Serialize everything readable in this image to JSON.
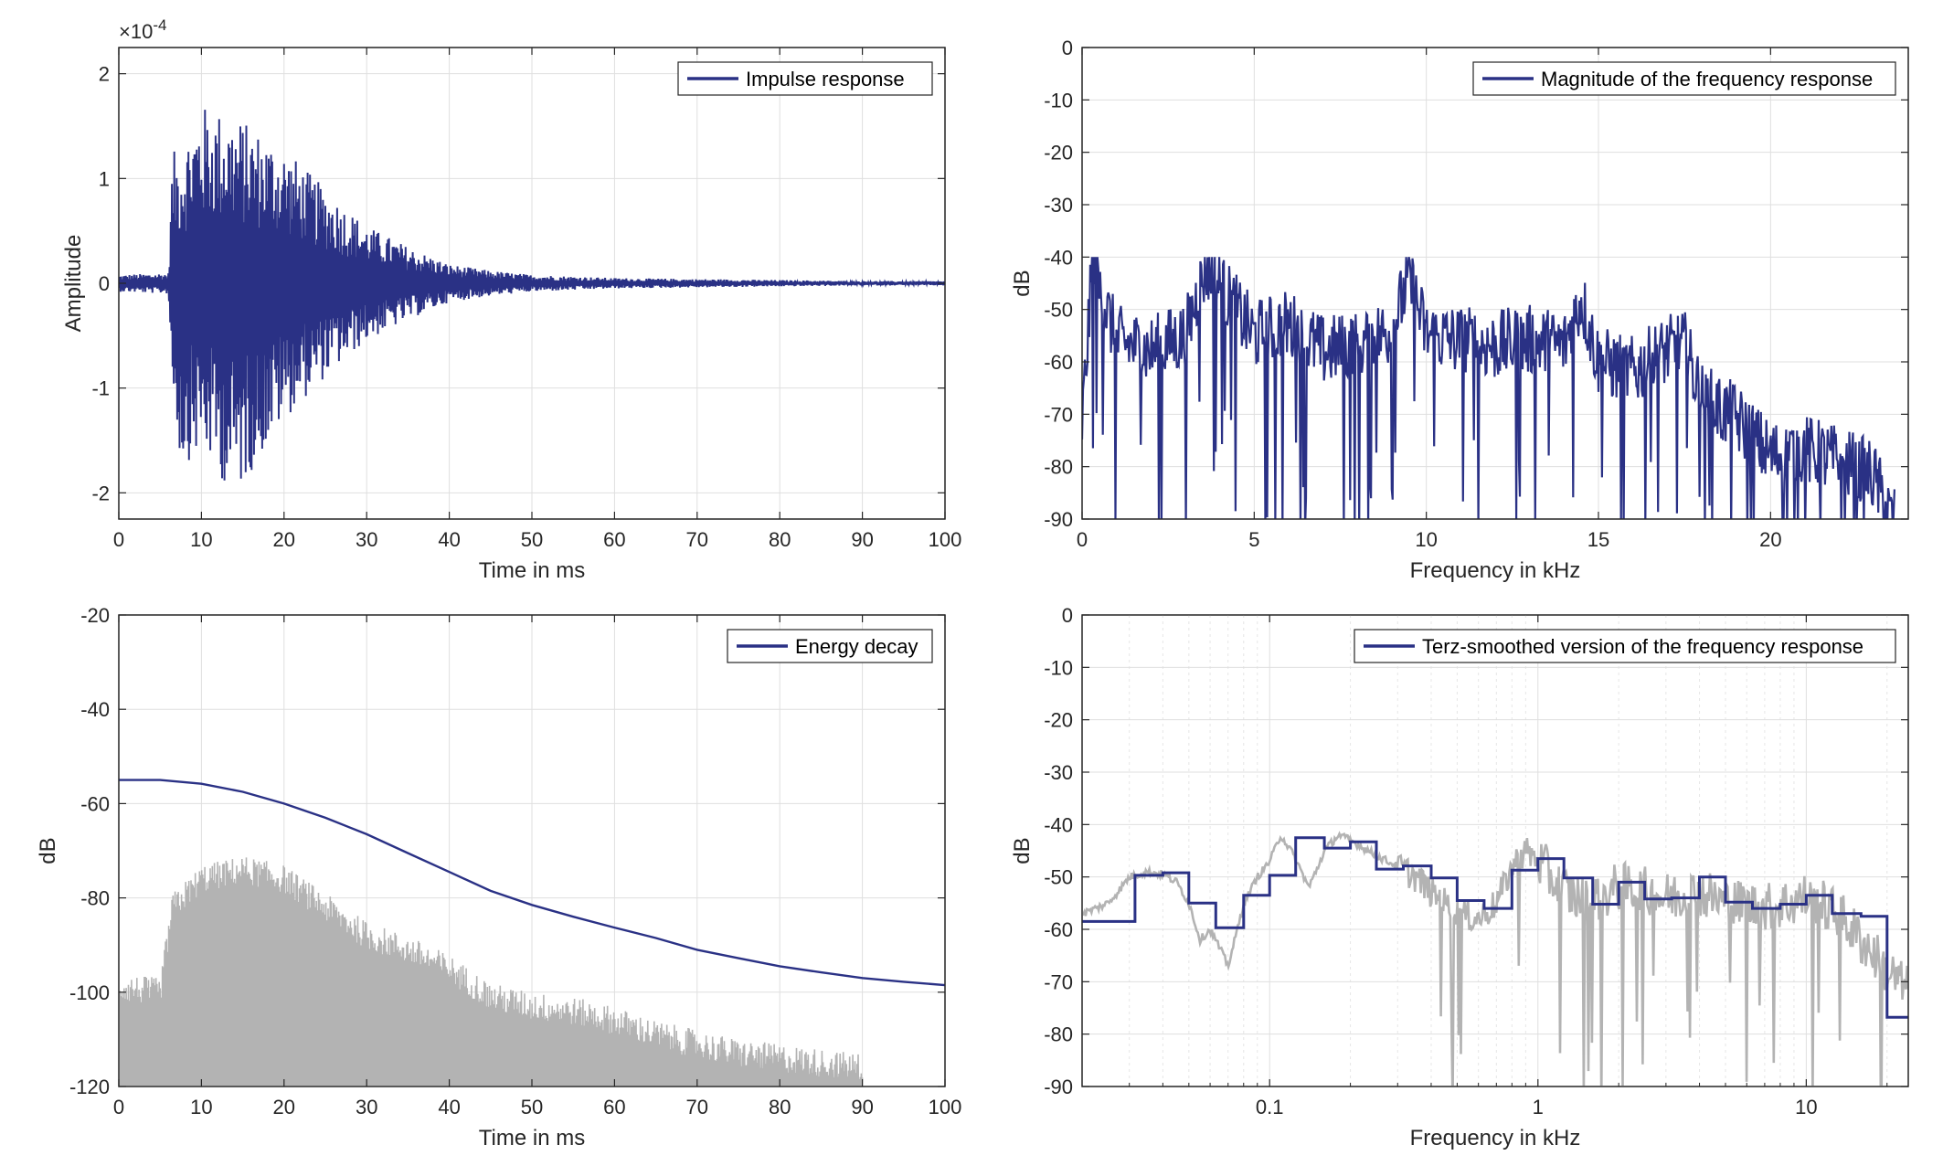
{
  "colors": {
    "main": "#2a3185",
    "gray": "#b3b3b3",
    "axis": "#262626",
    "grid": "#dfdfdf"
  },
  "chart_data": [
    {
      "id": "impulse",
      "type": "line",
      "title": "",
      "xlabel": "Time in ms",
      "ylabel": "Amplitude",
      "exponent_label": "×10",
      "exponent_power": "-4",
      "xlim": [
        0,
        100
      ],
      "ylim": [
        -2.25,
        2.25
      ],
      "xticks": [
        0,
        10,
        20,
        30,
        40,
        50,
        60,
        70,
        80,
        90,
        100
      ],
      "yticks": [
        -2,
        -1,
        0,
        1,
        2
      ],
      "grid": true,
      "legend": {
        "position": "top-right",
        "entries": [
          "Impulse response"
        ]
      },
      "series": [
        {
          "name": "Impulse response",
          "color": "#2a3185",
          "description_envelope": {
            "onset_ms": 6.3,
            "x": [
              0,
              6,
              6.5,
              7.5,
              10,
              14,
              20,
              25,
              30,
              35,
              40,
              45,
              50,
              60,
              70,
              80,
              90,
              100
            ],
            "upper": [
              0.08,
              0.1,
              1.25,
              1.3,
              1.7,
              1.6,
              1.3,
              0.9,
              0.55,
              0.35,
              0.18,
              0.12,
              0.08,
              0.05,
              0.04,
              0.03,
              0.02,
              0.02
            ],
            "lower": [
              -0.08,
              -0.1,
              -1.0,
              -1.75,
              -1.6,
              -2.05,
              -1.3,
              -0.9,
              -0.55,
              -0.35,
              -0.18,
              -0.12,
              -0.08,
              -0.05,
              -0.04,
              -0.03,
              -0.02,
              -0.02
            ]
          }
        }
      ]
    },
    {
      "id": "magnitude",
      "type": "line",
      "title": "",
      "xlabel": "Frequency in kHz",
      "ylabel": "dB",
      "xlim": [
        0,
        24
      ],
      "ylim": [
        -90,
        0
      ],
      "xticks": [
        0,
        5,
        10,
        15,
        20
      ],
      "yticks": [
        0,
        -10,
        -20,
        -30,
        -40,
        -50,
        -60,
        -70,
        -80,
        -90
      ],
      "grid": true,
      "legend": {
        "position": "top-right",
        "entries": [
          "Magnitude of the frequency response"
        ]
      },
      "series": [
        {
          "name": "Magnitude of the frequency response",
          "color": "#2a3185",
          "x": [
            0,
            0.3,
            1,
            2,
            3,
            3.6,
            5,
            6,
            7,
            8,
            9,
            9.5,
            10,
            11,
            12,
            13,
            14,
            14.5,
            15,
            16,
            17,
            17.5,
            18,
            19,
            20,
            21,
            22,
            23,
            23.5
          ],
          "y": [
            -72,
            -42,
            -56,
            -58,
            -55,
            -42,
            -55,
            -53,
            -58,
            -57,
            -54,
            -44,
            -55,
            -56,
            -57,
            -56,
            -57,
            -48,
            -60,
            -62,
            -58,
            -57,
            -67,
            -71,
            -78,
            -77,
            -79,
            -82,
            -90
          ]
        }
      ]
    },
    {
      "id": "energy",
      "type": "line",
      "title": "",
      "xlabel": "Time in ms",
      "ylabel": "dB",
      "xlim": [
        0,
        100
      ],
      "ylim": [
        -120,
        -20
      ],
      "xticks": [
        0,
        10,
        20,
        30,
        40,
        50,
        60,
        70,
        80,
        90,
        100
      ],
      "yticks": [
        -20,
        -40,
        -60,
        -80,
        -100,
        -120
      ],
      "grid": true,
      "legend": {
        "position": "top-right",
        "entries": [
          "Energy decay"
        ]
      },
      "series": [
        {
          "name": "Energy decay",
          "color": "#2a3185",
          "x": [
            0,
            5,
            10,
            15,
            20,
            25,
            30,
            35,
            40,
            45,
            50,
            55,
            60,
            65,
            70,
            75,
            80,
            85,
            90,
            95,
            100
          ],
          "y": [
            -55,
            -55,
            -55.8,
            -57.5,
            -60,
            -63,
            -66.5,
            -70.5,
            -74.5,
            -78.5,
            -81.5,
            -84,
            -86.3,
            -88.5,
            -91,
            -92.8,
            -94.5,
            -95.8,
            -97,
            -97.8,
            -98.5
          ]
        },
        {
          "name": "",
          "color": "#b3b3b3",
          "x": [
            0,
            5,
            6.5,
            10,
            15,
            20,
            25,
            30,
            35,
            40,
            45,
            50,
            55,
            60,
            65,
            70,
            75,
            80,
            85,
            90
          ],
          "y": [
            -102,
            -103,
            -85,
            -79,
            -77,
            -79,
            -85,
            -91,
            -94,
            -98,
            -104,
            -106,
            -107,
            -109,
            -112,
            -114,
            -116,
            -117,
            -118,
            -119
          ]
        }
      ]
    },
    {
      "id": "terz",
      "type": "line",
      "title": "",
      "xlabel": "Frequency in kHz",
      "ylabel": "dB",
      "xscale": "log",
      "xlim": [
        0.02,
        24
      ],
      "ylim": [
        -90,
        0
      ],
      "xticks": [
        0.1,
        1,
        10
      ],
      "xticklabels": [
        "0.1",
        "1",
        "10"
      ],
      "yticks": [
        0,
        -10,
        -20,
        -30,
        -40,
        -50,
        -60,
        -70,
        -80,
        -90
      ],
      "grid": true,
      "legend": {
        "position": "top-right",
        "entries": [
          "Terz-smoothed version of the frequency response"
        ]
      },
      "series": [
        {
          "name": "Terz-smoothed version of the frequency response",
          "color": "#2a3185",
          "steps_x": [
            0.02,
            0.0315,
            0.04,
            0.05,
            0.063,
            0.08,
            0.1,
            0.125,
            0.16,
            0.2,
            0.25,
            0.315,
            0.4,
            0.5,
            0.63,
            0.8,
            1,
            1.25,
            1.6,
            2,
            2.5,
            3.15,
            4,
            5,
            6.3,
            8,
            10,
            12.5,
            16,
            20,
            24
          ],
          "steps_y": [
            -58.5,
            -49.7,
            -49.2,
            -55,
            -59.7,
            -53.5,
            -49.7,
            -42.5,
            -44.5,
            -43.3,
            -48.5,
            -47.9,
            -50.2,
            -54.5,
            -56,
            -48.7,
            -46.5,
            -50.2,
            -55.2,
            -51,
            -54.2,
            -54,
            -50,
            -54.8,
            -56,
            -55.2,
            -53.5,
            -57,
            -57.5,
            -76.8
          ]
        },
        {
          "name": "",
          "color": "#b3b3b3",
          "x": [
            0.02,
            0.025,
            0.03,
            0.035,
            0.04,
            0.045,
            0.05,
            0.055,
            0.06,
            0.07,
            0.08,
            0.09,
            0.1,
            0.11,
            0.12,
            0.14,
            0.16,
            0.18,
            0.2,
            0.25,
            0.3,
            0.35,
            0.4,
            0.5,
            0.6,
            0.7,
            0.8,
            0.9,
            1,
            1.2,
            1.5,
            2,
            3,
            4,
            5,
            7,
            10,
            13,
            16,
            20,
            24
          ],
          "y": [
            -57,
            -55,
            -50,
            -49,
            -49.5,
            -51,
            -55,
            -62,
            -60,
            -67,
            -55,
            -50,
            -47,
            -42,
            -45,
            -52,
            -45,
            -42,
            -43,
            -46,
            -48,
            -50,
            -53,
            -57,
            -58,
            -55,
            -48,
            -45,
            -47,
            -52,
            -55,
            -52,
            -54,
            -53,
            -55,
            -56,
            -54,
            -57,
            -62,
            -68,
            -72
          ]
        }
      ]
    }
  ]
}
